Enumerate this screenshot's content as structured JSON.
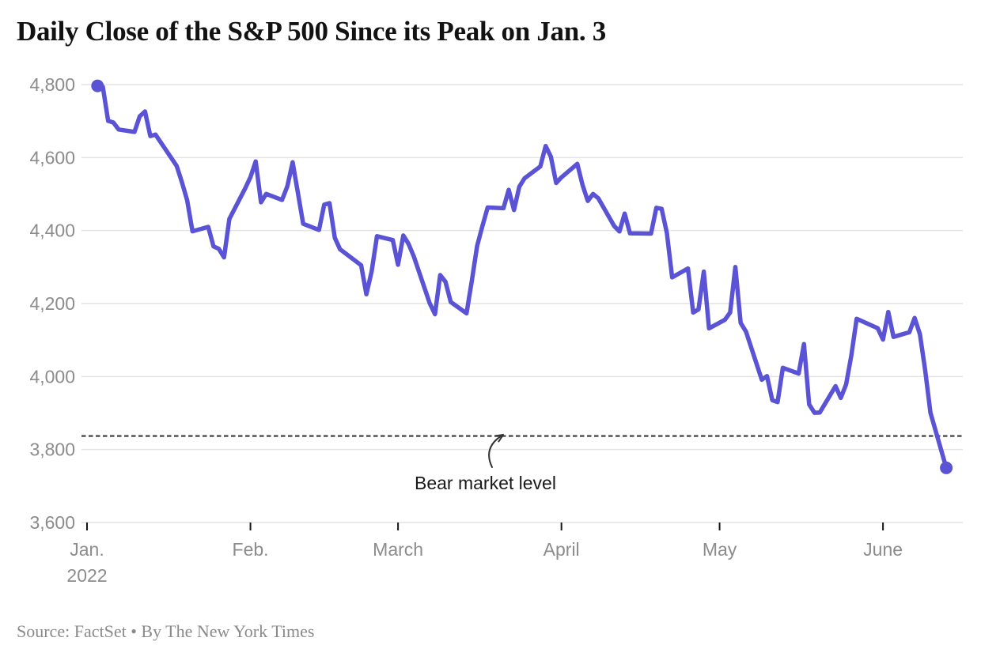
{
  "title": "Daily Close of the S&P 500 Since its Peak on Jan. 3",
  "source_line": "Source: FactSet • By The New York Times",
  "annotation": {
    "label": "Bear market level"
  },
  "colors": {
    "line": "#5a53d5",
    "grid": "#e4e4e4",
    "axis_label": "#8c8c8c",
    "reference_line": "#4a4a4a",
    "title": "#121212"
  },
  "chart_data": {
    "type": "line",
    "title": "Daily Close of the S&P 500 Since its Peak on Jan. 3",
    "xlabel": "",
    "ylabel": "",
    "ylim": [
      3600,
      4800
    ],
    "grid": true,
    "legend": false,
    "y_ticks": [
      {
        "value": 3600,
        "label": "3,600"
      },
      {
        "value": 3800,
        "label": "3,800"
      },
      {
        "value": 4000,
        "label": "4,000"
      },
      {
        "value": 4200,
        "label": "4,200"
      },
      {
        "value": 4400,
        "label": "4,400"
      },
      {
        "value": 4600,
        "label": "4,600"
      },
      {
        "value": 4800,
        "label": "4,800"
      }
    ],
    "x_ticks": [
      {
        "date": "2022-01-01",
        "label": "Jan.",
        "sublabel": "2022"
      },
      {
        "date": "2022-02-01",
        "label": "Feb."
      },
      {
        "date": "2022-03-01",
        "label": "March"
      },
      {
        "date": "2022-04-01",
        "label": "April"
      },
      {
        "date": "2022-05-01",
        "label": "May"
      },
      {
        "date": "2022-06-01",
        "label": "June"
      }
    ],
    "reference_line": {
      "value": 3837,
      "label": "Bear market level",
      "style": "dashed"
    },
    "markers": {
      "first_point": true,
      "last_point": true
    },
    "series": [
      {
        "name": "S&P 500 daily close",
        "color": "#5a53d5",
        "points": [
          [
            "2022-01-03",
            4796.56
          ],
          [
            "2022-01-04",
            4793.54
          ],
          [
            "2022-01-05",
            4700.58
          ],
          [
            "2022-01-06",
            4696.05
          ],
          [
            "2022-01-07",
            4677.03
          ],
          [
            "2022-01-10",
            4670.29
          ],
          [
            "2022-01-11",
            4713.07
          ],
          [
            "2022-01-12",
            4726.35
          ],
          [
            "2022-01-13",
            4659.03
          ],
          [
            "2022-01-14",
            4662.85
          ],
          [
            "2022-01-18",
            4577.11
          ],
          [
            "2022-01-19",
            4532.76
          ],
          [
            "2022-01-20",
            4482.73
          ],
          [
            "2022-01-21",
            4397.94
          ],
          [
            "2022-01-24",
            4410.13
          ],
          [
            "2022-01-25",
            4356.45
          ],
          [
            "2022-01-26",
            4349.93
          ],
          [
            "2022-01-27",
            4326.51
          ],
          [
            "2022-01-28",
            4431.85
          ],
          [
            "2022-01-31",
            4515.55
          ],
          [
            "2022-02-01",
            4546.54
          ],
          [
            "2022-02-02",
            4589.38
          ],
          [
            "2022-02-03",
            4477.44
          ],
          [
            "2022-02-04",
            4500.53
          ],
          [
            "2022-02-07",
            4483.87
          ],
          [
            "2022-02-08",
            4521.54
          ],
          [
            "2022-02-09",
            4587.18
          ],
          [
            "2022-02-10",
            4504.08
          ],
          [
            "2022-02-11",
            4418.64
          ],
          [
            "2022-02-14",
            4401.67
          ],
          [
            "2022-02-15",
            4471.07
          ],
          [
            "2022-02-16",
            4475.01
          ],
          [
            "2022-02-17",
            4380.26
          ],
          [
            "2022-02-18",
            4348.87
          ],
          [
            "2022-02-22",
            4304.76
          ],
          [
            "2022-02-23",
            4225.5
          ],
          [
            "2022-02-24",
            4288.7
          ],
          [
            "2022-02-25",
            4384.65
          ],
          [
            "2022-02-28",
            4373.94
          ],
          [
            "2022-03-01",
            4306.26
          ],
          [
            "2022-03-02",
            4386.54
          ],
          [
            "2022-03-03",
            4363.49
          ],
          [
            "2022-03-04",
            4328.87
          ],
          [
            "2022-03-07",
            4201.09
          ],
          [
            "2022-03-08",
            4170.7
          ],
          [
            "2022-03-09",
            4277.88
          ],
          [
            "2022-03-10",
            4259.52
          ],
          [
            "2022-03-11",
            4204.31
          ],
          [
            "2022-03-14",
            4173.11
          ],
          [
            "2022-03-15",
            4262.45
          ],
          [
            "2022-03-16",
            4357.86
          ],
          [
            "2022-03-17",
            4411.67
          ],
          [
            "2022-03-18",
            4463.12
          ],
          [
            "2022-03-21",
            4461.18
          ],
          [
            "2022-03-22",
            4511.61
          ],
          [
            "2022-03-23",
            4456.24
          ],
          [
            "2022-03-24",
            4520.16
          ],
          [
            "2022-03-25",
            4543.06
          ],
          [
            "2022-03-28",
            4575.52
          ],
          [
            "2022-03-29",
            4631.6
          ],
          [
            "2022-03-30",
            4602.45
          ],
          [
            "2022-03-31",
            4530.41
          ],
          [
            "2022-04-01",
            4545.86
          ],
          [
            "2022-04-04",
            4582.64
          ],
          [
            "2022-04-05",
            4525.12
          ],
          [
            "2022-04-06",
            4481.15
          ],
          [
            "2022-04-07",
            4500.21
          ],
          [
            "2022-04-08",
            4488.28
          ],
          [
            "2022-04-11",
            4412.53
          ],
          [
            "2022-04-12",
            4397.45
          ],
          [
            "2022-04-13",
            4446.59
          ],
          [
            "2022-04-14",
            4392.59
          ],
          [
            "2022-04-18",
            4391.69
          ],
          [
            "2022-04-19",
            4462.21
          ],
          [
            "2022-04-20",
            4459.45
          ],
          [
            "2022-04-21",
            4393.66
          ],
          [
            "2022-04-22",
            4271.78
          ],
          [
            "2022-04-25",
            4296.12
          ],
          [
            "2022-04-26",
            4175.2
          ],
          [
            "2022-04-27",
            4183.96
          ],
          [
            "2022-04-28",
            4287.5
          ],
          [
            "2022-04-29",
            4131.93
          ],
          [
            "2022-05-02",
            4155.38
          ],
          [
            "2022-05-03",
            4175.48
          ],
          [
            "2022-05-04",
            4300.17
          ],
          [
            "2022-05-05",
            4146.87
          ],
          [
            "2022-05-06",
            4123.34
          ],
          [
            "2022-05-09",
            3991.24
          ],
          [
            "2022-05-10",
            4001.05
          ],
          [
            "2022-05-11",
            3935.18
          ],
          [
            "2022-05-12",
            3930.08
          ],
          [
            "2022-05-13",
            4023.89
          ],
          [
            "2022-05-16",
            4008.01
          ],
          [
            "2022-05-17",
            4088.85
          ],
          [
            "2022-05-18",
            3923.68
          ],
          [
            "2022-05-19",
            3900.79
          ],
          [
            "2022-05-20",
            3901.36
          ],
          [
            "2022-05-23",
            3973.75
          ],
          [
            "2022-05-24",
            3941.48
          ],
          [
            "2022-05-25",
            3978.73
          ],
          [
            "2022-05-26",
            4057.84
          ],
          [
            "2022-05-27",
            4158.24
          ],
          [
            "2022-05-31",
            4132.15
          ],
          [
            "2022-06-01",
            4101.23
          ],
          [
            "2022-06-02",
            4176.82
          ],
          [
            "2022-06-03",
            4108.54
          ],
          [
            "2022-06-06",
            4121.43
          ],
          [
            "2022-06-07",
            4160.68
          ],
          [
            "2022-06-08",
            4115.77
          ],
          [
            "2022-06-09",
            4017.82
          ],
          [
            "2022-06-10",
            3900.86
          ],
          [
            "2022-06-13",
            3749.63
          ]
        ]
      }
    ]
  }
}
